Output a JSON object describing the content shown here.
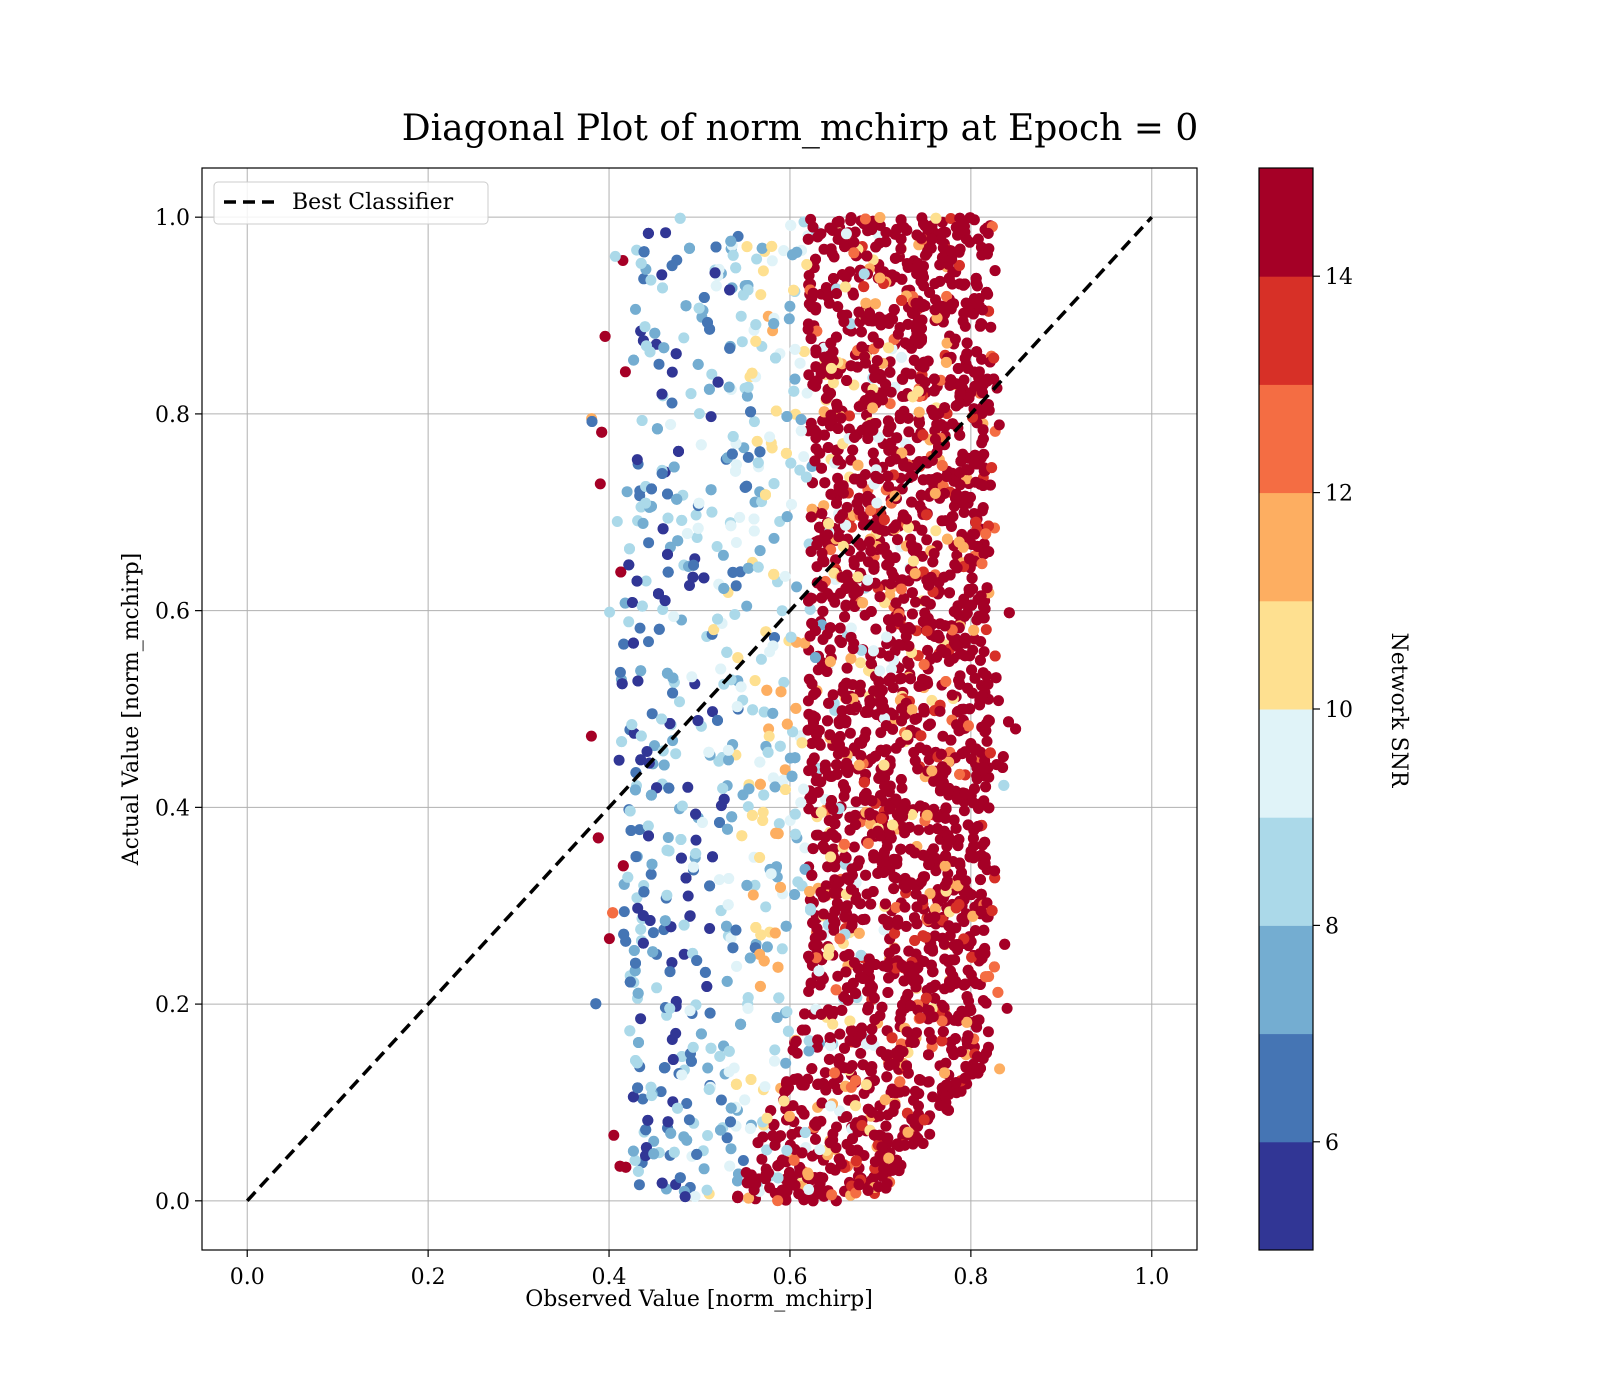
{
  "chart_data": {
    "type": "scatter",
    "title": "Diagonal Plot of norm_mchirp at Epoch = 0",
    "xlabel": "Observed Value [norm_mchirp]",
    "ylabel": "Actual Value [norm_mchirp]",
    "xlim": [
      -0.05,
      1.05
    ],
    "ylim": [
      -0.05,
      1.05
    ],
    "xticks": [
      "0.0",
      "0.2",
      "0.4",
      "0.6",
      "0.8",
      "1.0"
    ],
    "yticks": [
      "0.0",
      "0.2",
      "0.4",
      "0.6",
      "0.8",
      "1.0"
    ],
    "xtick_values": [
      0.0,
      0.2,
      0.4,
      0.6,
      0.8,
      1.0
    ],
    "ytick_values": [
      0.0,
      0.2,
      0.4,
      0.6,
      0.8,
      1.0
    ],
    "grid": true,
    "legend": {
      "placement": "top-left",
      "entries": [
        "Best Classifier"
      ]
    },
    "reference_line": {
      "name": "Best Classifier",
      "x": [
        0.0,
        1.0
      ],
      "y": [
        0.0,
        1.0
      ],
      "style": "dashed",
      "color": "#000000"
    },
    "scatter_summary": {
      "x_range": [
        0.38,
        0.85
      ],
      "y_range": [
        0.0,
        1.0
      ],
      "dense_high_snr_x_range": [
        0.62,
        0.82
      ],
      "point_count_shown": "many (dense cloud)"
    },
    "colorbar": {
      "label": "Network SNR",
      "range": [
        5,
        15
      ],
      "ticks": [
        "6",
        "8",
        "10",
        "12",
        "14"
      ],
      "tick_values": [
        6,
        8,
        10,
        12,
        14
      ],
      "bins": [
        5,
        6,
        7,
        8,
        9,
        10,
        11,
        12,
        13,
        14,
        15
      ],
      "colors": [
        "#313695",
        "#4575b4",
        "#74add1",
        "#abd9e9",
        "#e0f3f8",
        "#fee090",
        "#fdae61",
        "#f46d43",
        "#d73027",
        "#a50026"
      ]
    }
  }
}
